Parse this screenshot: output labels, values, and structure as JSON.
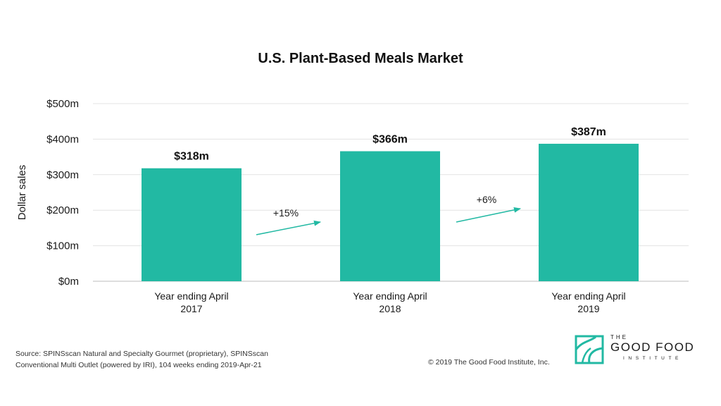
{
  "chart_data": {
    "type": "bar",
    "title": "U.S. Plant-Based Meals Market",
    "ylabel": "Dollar sales",
    "xlabel": "",
    "ylim": [
      0,
      500
    ],
    "y_ticks": [
      "$0m",
      "$100m",
      "$200m",
      "$300m",
      "$400m",
      "$500m"
    ],
    "y_tick_values": [
      0,
      100,
      200,
      300,
      400,
      500
    ],
    "grid": true,
    "categories": [
      [
        "Year ending April",
        "2017"
      ],
      [
        "Year ending April",
        "2018"
      ],
      [
        "Year ending April",
        "2019"
      ]
    ],
    "values": [
      318,
      366,
      387
    ],
    "value_labels": [
      "$318m",
      "$366m",
      "$387m"
    ],
    "bar_color": "#22b9a3",
    "annotations": [
      "+15%",
      "+6%"
    ],
    "arrow_color": "#22b9a3"
  },
  "footer": {
    "source_line1": "Source: SPINSscan Natural and Specialty Gourmet (proprietary), SPINSscan",
    "source_line2": "Conventional Multi Outlet (powered by IRI), 104 weeks ending 2019-Apr-21",
    "copyright": "© 2019 The Good Food Institute, Inc."
  },
  "logo": {
    "top": "THE",
    "main": "GOOD FOOD",
    "sub": "INSTITUTE",
    "icon": "leaf-square-icon",
    "color": "#22b9a3"
  }
}
